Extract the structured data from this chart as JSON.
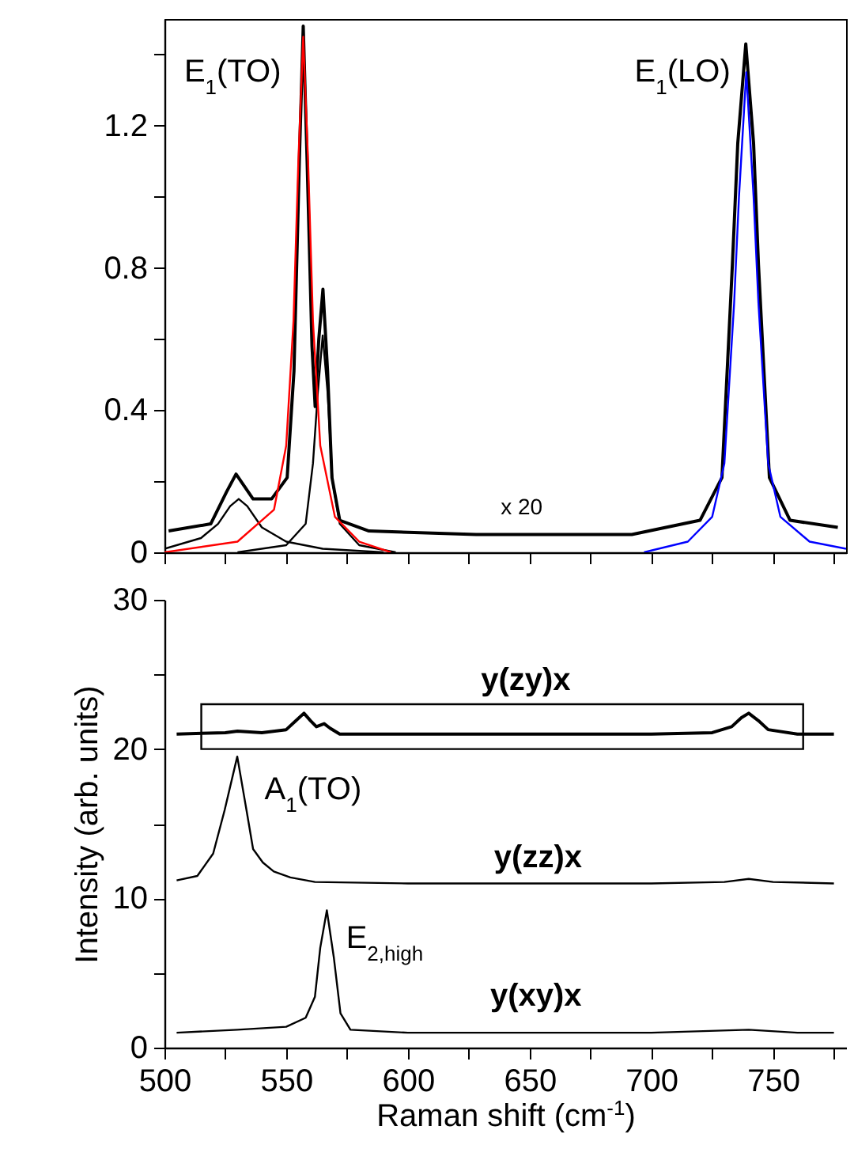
{
  "chart_data": [
    {
      "type": "line",
      "xlim": [
        500,
        780
      ],
      "ylim": [
        0,
        1.5
      ],
      "xticks": [
        500,
        {
          "value": 525,
          "label": null
        },
        550,
        {
          "value": 575,
          "label": null
        },
        600,
        {
          "value": 625,
          "label": null
        },
        650,
        {
          "value": 675,
          "label": null
        },
        700,
        {
          "value": 725,
          "label": null
        },
        750,
        {
          "value": 775,
          "label": null
        }
      ],
      "yticks": [
        0,
        {
          "value": 0.2,
          "label": null
        },
        0.4,
        {
          "value": 0.6,
          "label": null
        },
        0.8,
        {
          "value": 1.0,
          "label": null
        },
        1.2,
        {
          "value": 1.4,
          "label": null
        }
      ],
      "tick_labels": "y",
      "grid": false,
      "marker": "none",
      "line_style": "solid",
      "annotations": [
        "E$_{1}$(TO)",
        "E$_{1}$(LO)",
        "x 20"
      ],
      "series": [
        {
          "color": "#000000",
          "x": [
            501.7,
            519,
            525.5,
            529.4,
            536.4,
            544,
            550.4,
            553.2,
            555.4,
            557,
            558.6,
            560.6,
            561.9,
            563.4,
            565.1,
            567,
            568.8,
            572,
            584,
            628,
            692,
            720,
            729,
            733.3,
            735.5,
            738.8,
            742,
            744,
            748.5,
            757,
            776.6
          ],
          "values": [
            0.06,
            0.08,
            0.17,
            0.22,
            0.15,
            0.15,
            0.21,
            0.51,
            1.1,
            1.48,
            1.1,
            0.58,
            0.41,
            0.6,
            0.74,
            0.51,
            0.21,
            0.09,
            0.06,
            0.05,
            0.05,
            0.09,
            0.21,
            0.81,
            1.15,
            1.43,
            1.15,
            0.81,
            0.21,
            0.09,
            0.07
          ]
        },
        {
          "color": "#000000",
          "x": [
            500,
            515,
            522,
            527,
            530.5,
            534,
            540,
            550,
            565,
            590
          ],
          "values": [
            0.01,
            0.04,
            0.08,
            0.13,
            0.15,
            0.13,
            0.07,
            0.03,
            0.01,
            0.0
          ]
        },
        {
          "color": "#000000",
          "x": [
            530,
            550,
            558,
            561,
            563,
            565,
            567,
            569,
            572,
            580,
            595
          ],
          "values": [
            0.0,
            0.02,
            0.08,
            0.25,
            0.45,
            0.61,
            0.45,
            0.2,
            0.08,
            0.02,
            0.0
          ]
        },
        {
          "color": "#ff0000",
          "x": [
            500,
            530,
            545,
            550,
            553,
            555,
            557,
            559,
            561,
            564,
            570,
            580,
            593
          ],
          "values": [
            0.0,
            0.03,
            0.12,
            0.3,
            0.65,
            1.1,
            1.45,
            1.1,
            0.65,
            0.3,
            0.1,
            0.03,
            0.0
          ]
        },
        {
          "color": "#0000ff",
          "x": [
            697,
            715,
            725,
            730,
            734,
            736,
            739,
            742,
            744,
            748,
            753,
            765,
            780
          ],
          "values": [
            0.0,
            0.03,
            0.1,
            0.25,
            0.7,
            1.0,
            1.35,
            1.0,
            0.7,
            0.25,
            0.1,
            0.03,
            0.01
          ]
        }
      ]
    },
    {
      "type": "line",
      "xlabel": "Raman shift (cm$^{-1}$)",
      "ylabel": "Intensity (arb. units)",
      "xlim": [
        500,
        780
      ],
      "ylim": [
        0,
        30
      ],
      "xticks": [
        500,
        {
          "value": 525,
          "label": null
        },
        550,
        {
          "value": 575,
          "label": null
        },
        600,
        {
          "value": 625,
          "label": null
        },
        650,
        {
          "value": 675,
          "label": null
        },
        700,
        {
          "value": 725,
          "label": null
        },
        750,
        {
          "value": 775,
          "label": null
        }
      ],
      "yticks": [
        0,
        {
          "value": 5,
          "label": null
        },
        10,
        {
          "value": 15,
          "label": null
        },
        20,
        {
          "value": 25,
          "label": null
        },
        30
      ],
      "grid": false,
      "marker": "none",
      "line_style": "solid",
      "annotations": [
        "y(zy)x",
        "A$_{1}$(TO)",
        "y(zz)x",
        "E$_{2,high}$",
        "y(xy)x"
      ],
      "series": [
        {
          "color": "#000000",
          "x": [
            505,
            525,
            530,
            540,
            550,
            554,
            557.3,
            560,
            562.4,
            565.6,
            568,
            572,
            600,
            700,
            725,
            733,
            737,
            740,
            744,
            748,
            760,
            775
          ],
          "values": [
            21.0,
            21.1,
            21.2,
            21.1,
            21.3,
            21.9,
            22.4,
            21.9,
            21.5,
            21.7,
            21.4,
            21.0,
            21.0,
            21.0,
            21.1,
            21.5,
            22.1,
            22.4,
            21.9,
            21.3,
            21.0,
            21.0
          ]
        },
        {
          "color": "#000000",
          "x": [
            505,
            513.5,
            520,
            524.7,
            529.9,
            533.7,
            536.4,
            540.4,
            544.9,
            551.7,
            561.8,
            600,
            700,
            730,
            740,
            750,
            775
          ],
          "values": [
            11.2,
            11.5,
            13.0,
            15.9,
            19.5,
            15.9,
            13.3,
            12.4,
            11.8,
            11.4,
            11.1,
            11.0,
            11.0,
            11.1,
            11.3,
            11.1,
            11.0
          ]
        },
        {
          "color": "#000000",
          "x": [
            505,
            530,
            550,
            558,
            561.8,
            564,
            566.7,
            569.6,
            572.3,
            576.4,
            600,
            700,
            740,
            760,
            775
          ],
          "values": [
            1.0,
            1.2,
            1.4,
            2.0,
            3.4,
            6.7,
            9.2,
            6.0,
            2.3,
            1.2,
            1.0,
            1.0,
            1.2,
            1.0,
            1.0
          ]
        }
      ]
    }
  ]
}
